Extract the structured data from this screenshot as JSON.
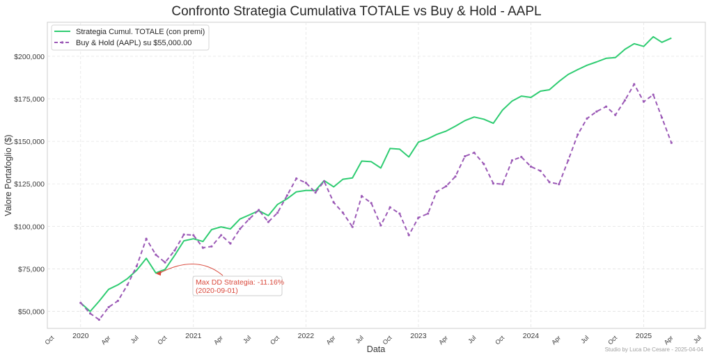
{
  "chart_data": {
    "type": "line",
    "title": "Confronto Strategia Cumulativa TOTALE vs Buy & Hold - AAPL",
    "xlabel": "Data",
    "ylabel": "Valore Portafoglio ($)",
    "ylim": [
      40000,
      220000
    ],
    "yticks": [
      50000,
      75000,
      100000,
      125000,
      150000,
      175000,
      200000
    ],
    "ytick_labels": [
      "$50,000",
      "$75,000",
      "$100,000",
      "$125,000",
      "$150,000",
      "$175,000",
      "$200,000"
    ],
    "xlim": [
      "2019-09-15",
      "2025-07-20"
    ],
    "xticks": [
      {
        "date": "2019-10-01",
        "label": "Oct",
        "rotated": true
      },
      {
        "date": "2020-01-01",
        "label": "2020",
        "rotated": false
      },
      {
        "date": "2020-04-01",
        "label": "Apr",
        "rotated": true
      },
      {
        "date": "2020-07-01",
        "label": "Jul",
        "rotated": true
      },
      {
        "date": "2020-10-01",
        "label": "Oct",
        "rotated": true
      },
      {
        "date": "2021-01-01",
        "label": "2021",
        "rotated": false
      },
      {
        "date": "2021-04-01",
        "label": "Apr",
        "rotated": true
      },
      {
        "date": "2021-07-01",
        "label": "Jul",
        "rotated": true
      },
      {
        "date": "2021-10-01",
        "label": "Oct",
        "rotated": true
      },
      {
        "date": "2022-01-01",
        "label": "2022",
        "rotated": false
      },
      {
        "date": "2022-04-01",
        "label": "Apr",
        "rotated": true
      },
      {
        "date": "2022-07-01",
        "label": "Jul",
        "rotated": true
      },
      {
        "date": "2022-10-01",
        "label": "Oct",
        "rotated": true
      },
      {
        "date": "2023-01-01",
        "label": "2023",
        "rotated": false
      },
      {
        "date": "2023-04-01",
        "label": "Apr",
        "rotated": true
      },
      {
        "date": "2023-07-01",
        "label": "Jul",
        "rotated": true
      },
      {
        "date": "2023-10-01",
        "label": "Oct",
        "rotated": true
      },
      {
        "date": "2024-01-01",
        "label": "2024",
        "rotated": false
      },
      {
        "date": "2024-04-01",
        "label": "Apr",
        "rotated": true
      },
      {
        "date": "2024-07-01",
        "label": "Jul",
        "rotated": true
      },
      {
        "date": "2024-10-01",
        "label": "Oct",
        "rotated": true
      },
      {
        "date": "2025-01-01",
        "label": "2025",
        "rotated": false
      },
      {
        "date": "2025-04-01",
        "label": "Apr",
        "rotated": true
      },
      {
        "date": "2025-07-01",
        "label": "Jul",
        "rotated": true
      }
    ],
    "grid": true,
    "legend_position": "top-left",
    "x_start": "2020-01-01",
    "x_frequency": "monthly",
    "series": [
      {
        "name": "Strategia Cumul. TOTALE (con premi)",
        "color": "#2ecc71",
        "style": "solid",
        "values": [
          55000,
          50000,
          56000,
          63000,
          65600,
          69300,
          74200,
          81200,
          72600,
          74700,
          82900,
          91500,
          92700,
          91100,
          98100,
          99700,
          98500,
          104300,
          106700,
          109200,
          106300,
          112900,
          116200,
          120300,
          121100,
          121100,
          126900,
          123200,
          127700,
          128500,
          138400,
          138000,
          134300,
          145800,
          145400,
          140800,
          149500,
          151500,
          154000,
          156000,
          158900,
          162200,
          164300,
          163000,
          160600,
          168400,
          173700,
          176600,
          175800,
          179500,
          180300,
          185200,
          189300,
          192200,
          194700,
          196700,
          198800,
          199200,
          204100,
          207400,
          205800,
          211500,
          208200,
          210700
        ]
      },
      {
        "name": "Buy & Hold (AAPL) su $55,000.00",
        "color": "#9b59b6",
        "style": "dashed",
        "values": [
          55000,
          48800,
          45100,
          52500,
          56200,
          65600,
          76700,
          92700,
          83300,
          78800,
          85800,
          95200,
          94800,
          87400,
          88200,
          94800,
          89900,
          98500,
          104300,
          109600,
          102600,
          108000,
          118200,
          128100,
          125600,
          119900,
          126500,
          114100,
          108000,
          99700,
          117800,
          113700,
          100600,
          111200,
          107500,
          94800,
          105100,
          107500,
          120300,
          123600,
          129300,
          141200,
          143300,
          136700,
          125200,
          124800,
          138800,
          140800,
          135100,
          132600,
          126000,
          124800,
          138800,
          154000,
          163400,
          167500,
          170400,
          165500,
          174100,
          183600,
          173300,
          177400,
          163900,
          149100
        ]
      }
    ],
    "annotations": [
      {
        "text_line1": "Max DD Strategia: -11.16%",
        "text_line2": "(2020-09-01)",
        "target_date": "2020-09-01",
        "target_value": 72600,
        "color": "#d9483b"
      }
    ],
    "footer_credit": "Studio by Luca De Cesare - 2025-04-04"
  }
}
